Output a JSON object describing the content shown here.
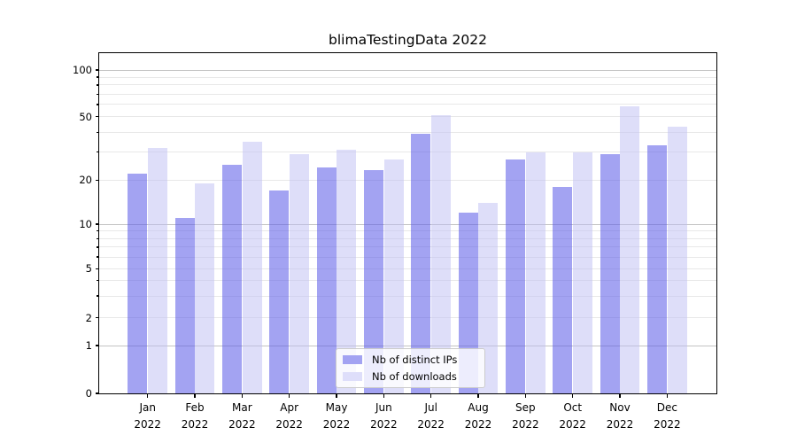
{
  "chart_data": {
    "type": "bar",
    "title": "blimaTestingData 2022",
    "categories": [
      "Jan",
      "Feb",
      "Mar",
      "Apr",
      "May",
      "Jun",
      "Jul",
      "Aug",
      "Sep",
      "Oct",
      "Nov",
      "Dec"
    ],
    "year_label": "2022",
    "series": [
      {
        "name": "Nb of distinct IPs",
        "color": "rgba(91,91,232,0.56)",
        "color_flat": "#a3a3f2",
        "values": [
          22,
          11,
          25,
          17,
          24,
          23,
          39,
          12,
          27,
          18,
          29,
          33
        ]
      },
      {
        "name": "Nb of downloads",
        "color": "rgba(190,190,244,0.5)",
        "color_flat": "#dedefa",
        "values": [
          32,
          19,
          35,
          29,
          31,
          27,
          51,
          14,
          30,
          30,
          58,
          43
        ]
      }
    ],
    "y_axis": {
      "scale": "symlog",
      "ticks": [
        0,
        1,
        2,
        5,
        10,
        20,
        50,
        100
      ],
      "gridlines_light": [
        2,
        3,
        4,
        5,
        6,
        7,
        8,
        9,
        20,
        30,
        40,
        50,
        60,
        70,
        80,
        90
      ],
      "gridlines_dark": [
        1,
        10,
        100
      ],
      "ylim": [
        0,
        130
      ]
    },
    "legend": {
      "position": "lower center"
    },
    "grid": true
  }
}
